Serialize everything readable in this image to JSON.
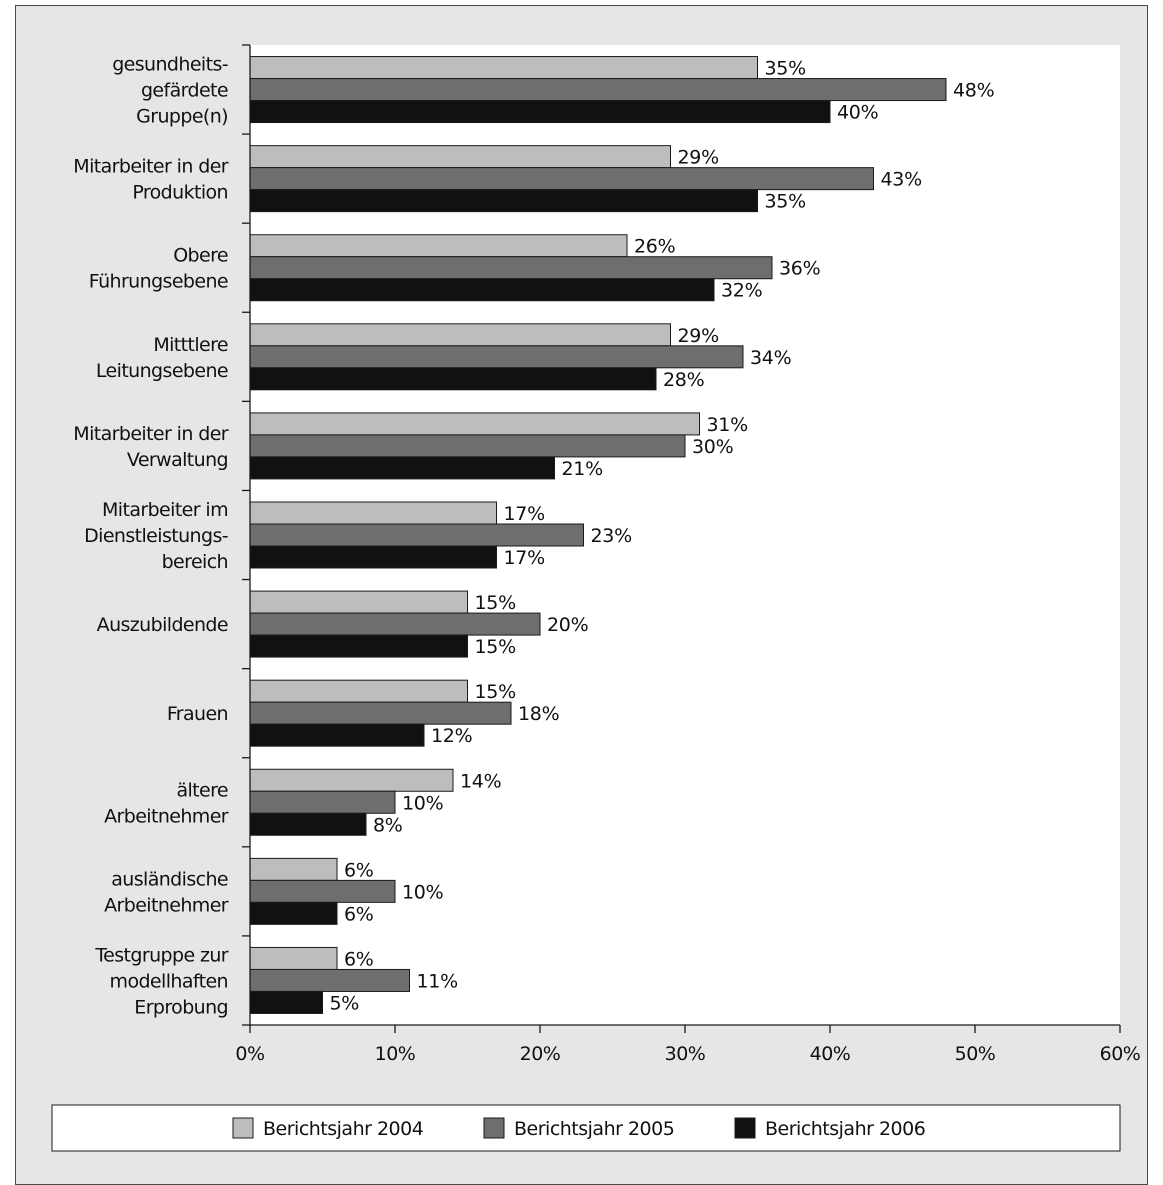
{
  "chart_data": {
    "type": "bar",
    "orientation": "horizontal",
    "categories": [
      [
        "gesundheits-",
        "gefärdete",
        "Gruppe(n)"
      ],
      [
        "Mitarbeiter in der",
        "Produktion"
      ],
      [
        "Obere",
        "Führungsebene"
      ],
      [
        "Mitttlere",
        "Leitungsebene"
      ],
      [
        "Mitarbeiter in der",
        "Verwaltung"
      ],
      [
        "Mitarbeiter im",
        "Dienstleistungs-",
        "bereich"
      ],
      [
        "Auszubildende"
      ],
      [
        "Frauen"
      ],
      [
        "ältere",
        "Arbeitnehmer"
      ],
      [
        "ausländische",
        "Arbeitnehmer"
      ],
      [
        "Testgruppe zur",
        "modellhaften",
        "Erprobung"
      ]
    ],
    "series": [
      {
        "name": "Berichtsjahr 2004",
        "color": "#bdbdbd",
        "values": [
          35,
          29,
          26,
          29,
          31,
          17,
          15,
          15,
          14,
          6,
          6
        ]
      },
      {
        "name": "Berichtsjahr 2005",
        "color": "#6e6e6e",
        "values": [
          48,
          43,
          36,
          34,
          30,
          23,
          20,
          18,
          10,
          10,
          11
        ]
      },
      {
        "name": "Berichtsjahr 2006",
        "color": "#111111",
        "values": [
          40,
          35,
          32,
          28,
          21,
          17,
          15,
          12,
          8,
          6,
          5
        ]
      }
    ],
    "value_suffix": "%",
    "xlim": [
      0,
      60
    ],
    "xticks": [
      0,
      10,
      20,
      30,
      40,
      50,
      60
    ],
    "xtick_labels": [
      "0%",
      "10%",
      "20%",
      "30%",
      "40%",
      "50%",
      "60%"
    ],
    "grid": false,
    "legend_position": "bottom"
  }
}
